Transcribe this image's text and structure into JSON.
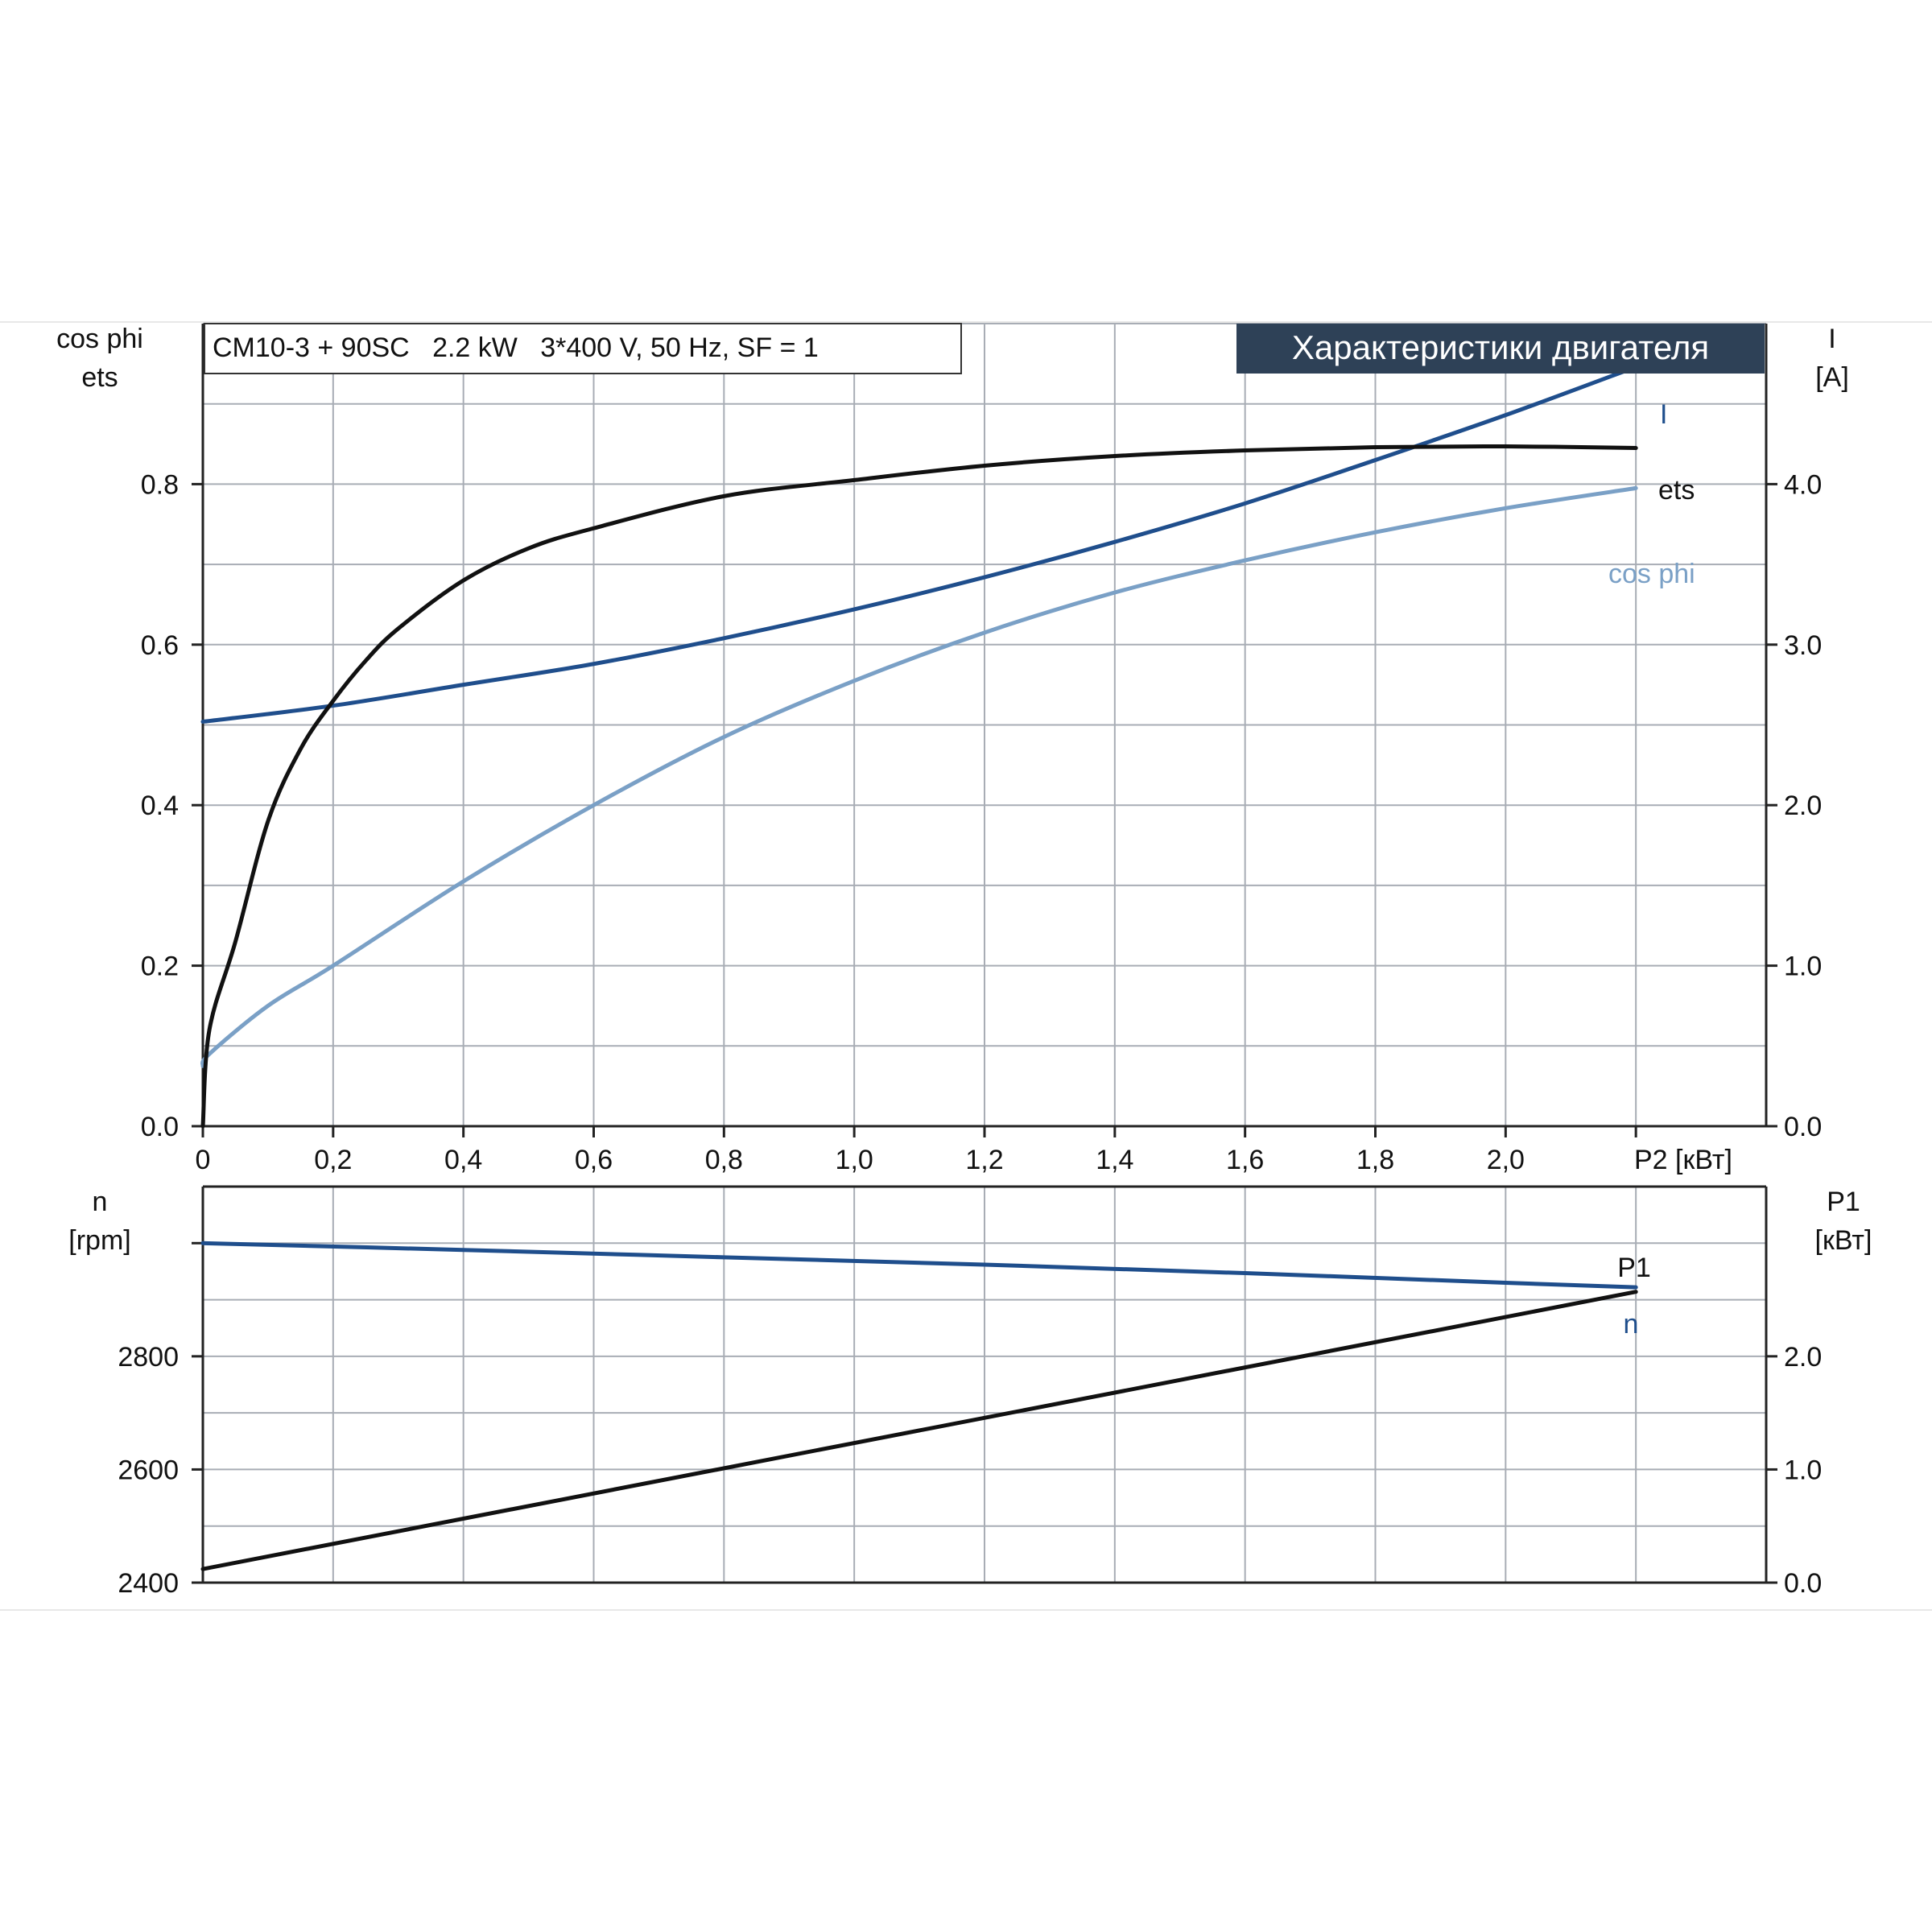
{
  "header": {
    "subtitle": "CM10-3 + 90SC   2.2 kW   3*400 V, 50 Hz, SF = 1",
    "title": "Характеристики двигателя"
  },
  "colors": {
    "title_bg": "#2e4157",
    "ets": "#111111",
    "I": "#1f4e8c",
    "cos_phi": "#7aa0c6",
    "n": "#1f4e8c",
    "P1": "#111111",
    "grid": "#a8adb5"
  },
  "chart_data": [
    {
      "type": "line",
      "xlabel": "P2 [кВт]",
      "x_ticks": [
        "0",
        "0,2",
        "0,4",
        "0,6",
        "0,8",
        "1,0",
        "1,2",
        "1,4",
        "1,6",
        "1,8",
        "2,0"
      ],
      "xlim": [
        0,
        2.4
      ],
      "left_axis": {
        "label_1": "cos phi",
        "label_2": "ets",
        "ylim": [
          0,
          1.0
        ],
        "ticks": [
          "0.0",
          "0.2",
          "0.4",
          "0.6",
          "0.8"
        ]
      },
      "right_axis": {
        "label_1": "I",
        "label_2": "[A]",
        "ylim": [
          0,
          5.0
        ],
        "ticks": [
          "0.0",
          "1.0",
          "2.0",
          "3.0",
          "4.0"
        ]
      },
      "grid": true,
      "series": [
        {
          "name": "ets",
          "axis": "left",
          "x": [
            0,
            0.01,
            0.05,
            0.1,
            0.15,
            0.2,
            0.25,
            0.3,
            0.4,
            0.5,
            0.6,
            0.8,
            1.0,
            1.2,
            1.4,
            1.6,
            1.8,
            2.0,
            2.2
          ],
          "y": [
            0.0,
            0.12,
            0.23,
            0.38,
            0.47,
            0.53,
            0.58,
            0.62,
            0.68,
            0.72,
            0.745,
            0.785,
            0.805,
            0.823,
            0.835,
            0.842,
            0.846,
            0.847,
            0.845
          ]
        },
        {
          "name": "I",
          "axis": "right",
          "x": [
            0,
            0.2,
            0.4,
            0.6,
            0.8,
            1.0,
            1.2,
            1.4,
            1.6,
            1.8,
            2.0,
            2.2
          ],
          "y": [
            2.52,
            2.62,
            2.75,
            2.88,
            3.04,
            3.22,
            3.42,
            3.64,
            3.88,
            4.15,
            4.43,
            4.73
          ]
        },
        {
          "name": "cos phi",
          "axis": "left",
          "x": [
            0,
            0.01,
            0.1,
            0.2,
            0.4,
            0.6,
            0.8,
            1.0,
            1.2,
            1.4,
            1.6,
            1.8,
            2.0,
            2.2
          ],
          "y": [
            0.075,
            0.09,
            0.15,
            0.2,
            0.305,
            0.4,
            0.485,
            0.555,
            0.615,
            0.665,
            0.705,
            0.74,
            0.77,
            0.795
          ]
        }
      ]
    },
    {
      "type": "line",
      "xlim": [
        0,
        2.4
      ],
      "left_axis": {
        "label_1": "n",
        "label_2": "[rpm]",
        "ylim": [
          2400,
          3100
        ],
        "ticks": [
          "2400",
          "2600",
          "2800"
        ]
      },
      "right_axis": {
        "label_1": "P1",
        "label_2": "[кВт]",
        "ylim": [
          0,
          3.5
        ],
        "ticks": [
          "0.0",
          "1.0",
          "2.0"
        ]
      },
      "grid": true,
      "series": [
        {
          "name": "n",
          "axis": "left",
          "x": [
            0,
            0.4,
            0.8,
            1.2,
            1.6,
            2.0,
            2.2
          ],
          "y": [
            3000,
            2988,
            2975,
            2962,
            2947,
            2930,
            2922
          ]
        },
        {
          "name": "P1",
          "axis": "right",
          "x": [
            0,
            2.2
          ],
          "y": [
            0.12,
            2.57
          ]
        }
      ]
    }
  ]
}
